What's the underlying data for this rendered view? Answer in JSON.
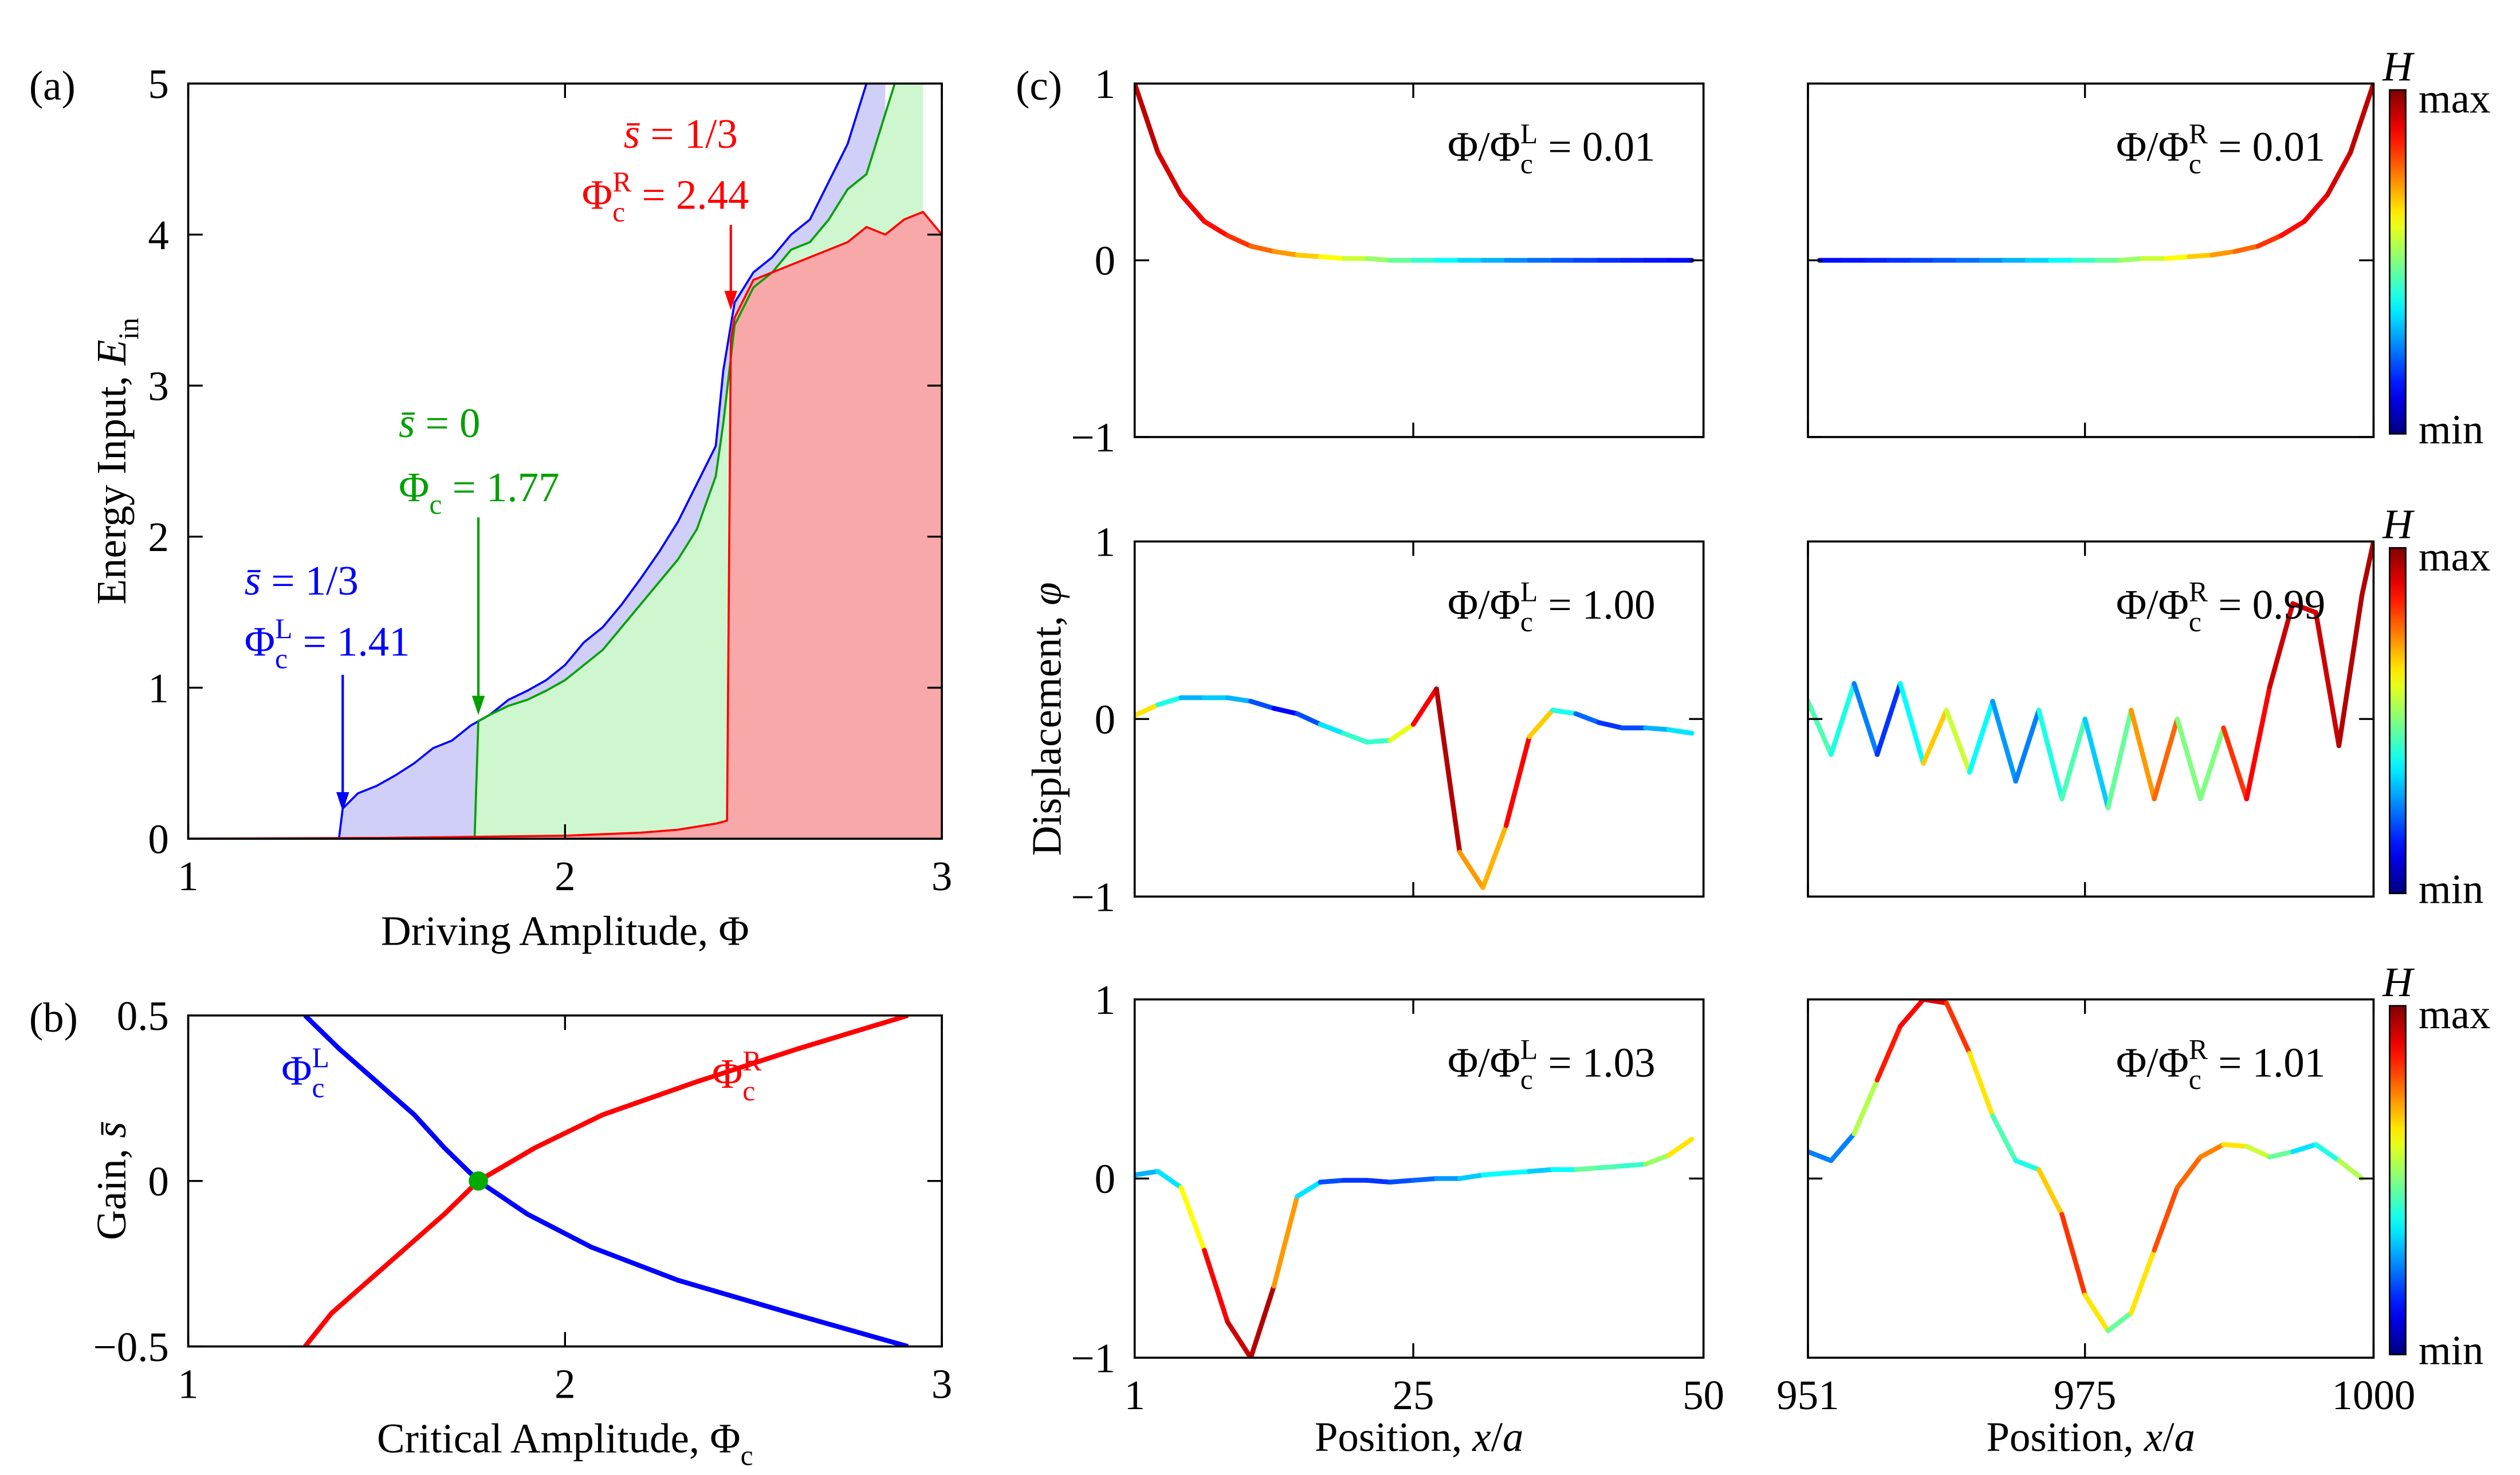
{
  "chart_data": [
    {
      "type": "area",
      "panel_label": "(a)",
      "xlabel": "Driving Amplitude, Φ",
      "ylabel": [
        "Energy Input, ",
        {
          "text": "E",
          "style": "italic"
        },
        {
          "text": "in",
          "style": "sub"
        }
      ],
      "xlim": [
        1,
        3
      ],
      "xticks": [
        1,
        2,
        3
      ],
      "ylim": [
        0,
        5
      ],
      "yticks": [
        0,
        1,
        2,
        3,
        4,
        5
      ],
      "series": [
        {
          "color": "#0000ff",
          "fill": "#cfcff7",
          "x": [
            1,
            1.4,
            1.41,
            1.45,
            1.5,
            1.55,
            1.6,
            1.65,
            1.7,
            1.75,
            1.8,
            1.85,
            1.9,
            1.95,
            2.0,
            2.05,
            2.1,
            2.15,
            2.2,
            2.25,
            2.3,
            2.35,
            2.4,
            2.42,
            2.45,
            2.5,
            2.55,
            2.6,
            2.65,
            2.7,
            2.75,
            2.8,
            2.85
          ],
          "values": [
            0,
            0,
            0.2,
            0.3,
            0.35,
            0.42,
            0.5,
            0.6,
            0.65,
            0.75,
            0.82,
            0.92,
            0.98,
            1.05,
            1.15,
            1.3,
            1.4,
            1.55,
            1.72,
            1.9,
            2.1,
            2.35,
            2.6,
            3.1,
            3.55,
            3.75,
            3.85,
            4.0,
            4.1,
            4.35,
            4.6,
            5.0,
            5.3
          ]
        },
        {
          "color": "#00a000",
          "fill": "#cff7cf",
          "x": [
            1,
            1.76,
            1.77,
            1.8,
            1.85,
            1.9,
            1.95,
            2.0,
            2.05,
            2.1,
            2.15,
            2.2,
            2.25,
            2.3,
            2.35,
            2.4,
            2.42,
            2.45,
            2.5,
            2.55,
            2.6,
            2.65,
            2.7,
            2.75,
            2.8,
            2.85,
            2.9,
            2.95
          ],
          "values": [
            0,
            0,
            0.78,
            0.82,
            0.88,
            0.92,
            0.98,
            1.05,
            1.15,
            1.25,
            1.4,
            1.55,
            1.7,
            1.85,
            2.05,
            2.4,
            2.75,
            3.4,
            3.65,
            3.75,
            3.9,
            3.95,
            4.1,
            4.3,
            4.4,
            4.8,
            5.2,
            5.4
          ]
        },
        {
          "color": "#ff0000",
          "fill": "#f8a8a8",
          "x": [
            1,
            1.5,
            2.0,
            2.2,
            2.3,
            2.4,
            2.43,
            2.44,
            2.45,
            2.5,
            2.55,
            2.6,
            2.65,
            2.7,
            2.75,
            2.8,
            2.85,
            2.9,
            2.95,
            3.0
          ],
          "values": [
            0,
            0.005,
            0.02,
            0.04,
            0.06,
            0.1,
            0.12,
            3.3,
            3.45,
            3.7,
            3.75,
            3.8,
            3.85,
            3.9,
            3.95,
            4.05,
            4.0,
            4.1,
            4.15,
            4.0
          ]
        }
      ],
      "annotations": [
        {
          "color": "#0000ff",
          "x": 1.41,
          "lines": [
            [
              {
                "text": "s̄",
                "style": "italic"
              },
              " = 1/3"
            ],
            [
              "Φ",
              {
                "text": "c",
                "style": "sub"
              },
              {
                "text": "L",
                "style": "sup"
              },
              " = 1.41"
            ]
          ]
        },
        {
          "color": "#00a000",
          "x": 1.77,
          "lines": [
            [
              {
                "text": "s̄",
                "style": "italic"
              },
              " = 0"
            ],
            [
              "Φ",
              {
                "text": "c",
                "style": "sub"
              },
              " = 1.77"
            ]
          ]
        },
        {
          "color": "#ff0000",
          "x": 2.44,
          "lines": [
            [
              {
                "text": "s̄",
                "style": "italic"
              },
              " = 1/3"
            ],
            [
              "Φ",
              {
                "text": "c",
                "style": "sub"
              },
              {
                "text": "R",
                "style": "sup"
              },
              " = 2.44"
            ]
          ]
        }
      ]
    },
    {
      "type": "line",
      "panel_label": "(b)",
      "xlabel": [
        "Critical Amplitude, Φ",
        {
          "text": "c",
          "style": "sub"
        }
      ],
      "ylabel": [
        "Gain, ",
        {
          "text": "s̄",
          "style": "italic"
        }
      ],
      "xlim": [
        1,
        3
      ],
      "xticks": [
        1,
        2,
        3
      ],
      "ylim": [
        -0.5,
        0.5
      ],
      "yticks": [
        {
          "value": -0.5,
          "label": "−0.5"
        },
        0,
        0.5
      ],
      "series": [
        {
          "color": "#0000ff",
          "x": [
            1.31,
            1.4,
            1.5,
            1.6,
            1.68,
            1.77,
            1.9,
            2.07,
            2.3,
            2.6,
            2.91
          ],
          "values": [
            0.5,
            0.4,
            0.3,
            0.2,
            0.1,
            0,
            -0.1,
            -0.2,
            -0.3,
            -0.4,
            -0.5
          ]
        },
        {
          "color": "#ff0000",
          "x": [
            1.31,
            1.38,
            1.48,
            1.58,
            1.68,
            1.77,
            1.92,
            2.1,
            2.35,
            2.62,
            2.91
          ],
          "values": [
            -0.5,
            -0.4,
            -0.3,
            -0.2,
            -0.1,
            0,
            0.1,
            0.2,
            0.3,
            0.4,
            0.5
          ]
        }
      ],
      "point": {
        "x": 1.77,
        "y": 0,
        "color": "#00aa00"
      },
      "annotations": [
        {
          "color": "#0000ff",
          "text": [
            "Φ",
            {
              "text": "c",
              "style": "sub"
            },
            {
              "text": "L",
              "style": "sup"
            }
          ]
        },
        {
          "color": "#ff0000",
          "text": [
            "Φ",
            {
              "text": "c",
              "style": "sub"
            },
            {
              "text": "R",
              "style": "sup"
            }
          ]
        }
      ]
    },
    {
      "type": "colorline",
      "panel_label": "(c)",
      "annotation": [
        "Φ/Φ",
        {
          "text": "c",
          "style": "sub"
        },
        {
          "text": "L",
          "style": "sup"
        },
        " = 0.01"
      ],
      "xlim": [
        1,
        50
      ],
      "xticks": [
        1,
        25,
        50
      ],
      "ylim": [
        -1,
        1
      ],
      "yticks": [
        {
          "value": -1,
          "label": "−1"
        },
        0,
        1
      ],
      "x": [
        1,
        3,
        5,
        7,
        9,
        11,
        13,
        15,
        17,
        19,
        21,
        23,
        25,
        27,
        29,
        31,
        33,
        35,
        37,
        39,
        41,
        43,
        45,
        47,
        49
      ],
      "values": [
        1,
        0.61,
        0.37,
        0.22,
        0.14,
        0.08,
        0.05,
        0.03,
        0.02,
        0.01,
        0.01,
        0,
        0,
        0,
        0,
        0,
        0,
        0,
        0,
        0,
        0,
        0,
        0,
        0,
        0
      ],
      "h": [
        0.95,
        0.93,
        0.9,
        0.88,
        0.85,
        0.8,
        0.75,
        0.7,
        0.65,
        0.6,
        0.55,
        0.5,
        0.45,
        0.4,
        0.35,
        0.32,
        0.28,
        0.25,
        0.22,
        0.2,
        0.18,
        0.16,
        0.15,
        0.14,
        0.13
      ]
    },
    {
      "type": "colorline",
      "annotation": [
        "Φ/Φ",
        {
          "text": "c",
          "style": "sub"
        },
        {
          "text": "R",
          "style": "sup"
        },
        " = 0.01"
      ],
      "colorbar": {
        "label": "H",
        "max": "max",
        "min": "min"
      },
      "xlim": [
        951,
        1000
      ],
      "xticks": [
        951,
        975,
        1000
      ],
      "ylim": [
        -1,
        1
      ],
      "yticks": [
        -1,
        0,
        1
      ],
      "x": [
        952,
        954,
        956,
        958,
        960,
        962,
        964,
        966,
        968,
        970,
        972,
        974,
        976,
        978,
        980,
        982,
        984,
        986,
        988,
        990,
        992,
        994,
        996,
        998,
        1000
      ],
      "values": [
        0,
        0,
        0,
        0,
        0,
        0,
        0,
        0,
        0,
        0,
        0,
        0,
        0,
        0,
        0.01,
        0.01,
        0.02,
        0.03,
        0.05,
        0.08,
        0.14,
        0.22,
        0.37,
        0.61,
        1
      ],
      "h": [
        0.13,
        0.14,
        0.15,
        0.16,
        0.18,
        0.2,
        0.22,
        0.25,
        0.28,
        0.32,
        0.35,
        0.4,
        0.45,
        0.5,
        0.55,
        0.6,
        0.65,
        0.7,
        0.75,
        0.8,
        0.85,
        0.88,
        0.9,
        0.93,
        0.95
      ]
    },
    {
      "type": "colorline",
      "ylabel": [
        "Displacement, ",
        {
          "text": "φ",
          "style": "italic"
        }
      ],
      "annotation": [
        "Φ/Φ",
        {
          "text": "c",
          "style": "sub"
        },
        {
          "text": "L",
          "style": "sup"
        },
        " = 1.00"
      ],
      "xlim": [
        1,
        50
      ],
      "xticks": [
        1,
        25,
        50
      ],
      "ylim": [
        -1,
        1
      ],
      "yticks": [
        {
          "value": -1,
          "label": "−1"
        },
        0,
        1
      ],
      "x": [
        1,
        3,
        5,
        7,
        9,
        11,
        13,
        15,
        17,
        19,
        21,
        23,
        25,
        27,
        29,
        31,
        33,
        35,
        37,
        39,
        41,
        43,
        45,
        47,
        49
      ],
      "values": [
        0.02,
        0.08,
        0.12,
        0.12,
        0.12,
        0.1,
        0.06,
        0.03,
        -0.03,
        -0.08,
        -0.13,
        -0.12,
        -0.03,
        0.17,
        -0.75,
        -0.95,
        -0.6,
        -0.1,
        0.05,
        0.03,
        -0.02,
        -0.05,
        -0.05,
        -0.06,
        -0.08
      ],
      "h": [
        0.8,
        0.5,
        0.3,
        0.3,
        0.35,
        0.25,
        0.15,
        0.1,
        0.3,
        0.4,
        0.45,
        0.4,
        0.8,
        0.95,
        0.95,
        0.5,
        0.9,
        0.85,
        0.5,
        0.3,
        0.15,
        0.2,
        0.2,
        0.4,
        0.3
      ]
    },
    {
      "type": "colorline",
      "annotation": [
        "Φ/Φ",
        {
          "text": "c",
          "style": "sub"
        },
        {
          "text": "R",
          "style": "sup"
        },
        " = 0.99"
      ],
      "colorbar": {
        "label": "H",
        "max": "max",
        "min": "min"
      },
      "xlim": [
        951,
        1000
      ],
      "xticks": [
        951,
        975,
        1000
      ],
      "ylim": [
        -1,
        1
      ],
      "yticks": [
        -1,
        0,
        1
      ],
      "x": [
        951,
        953,
        955,
        957,
        959,
        961,
        963,
        965,
        967,
        969,
        971,
        973,
        975,
        977,
        979,
        981,
        983,
        985,
        987,
        989,
        991,
        993,
        995,
        997,
        999,
        1000
      ],
      "values": [
        0.1,
        -0.2,
        0.2,
        -0.2,
        0.2,
        -0.25,
        0.05,
        -0.3,
        0.1,
        -0.35,
        0.05,
        -0.45,
        0.0,
        -0.5,
        0.05,
        -0.45,
        0.0,
        -0.45,
        -0.05,
        -0.45,
        0.18,
        0.65,
        0.6,
        -0.15,
        0.7,
        1.0
      ],
      "h": [
        0.4,
        0.5,
        0.3,
        0.2,
        0.15,
        0.6,
        0.75,
        0.4,
        0.35,
        0.2,
        0.3,
        0.5,
        0.4,
        0.25,
        0.7,
        0.75,
        0.8,
        0.2,
        0.8,
        0.85,
        0.9,
        0.95,
        0.9,
        0.95,
        0.95,
        0.95
      ]
    },
    {
      "type": "colorline",
      "xlabel": [
        "Position, ",
        {
          "text": "x",
          "style": "italic"
        },
        "/",
        {
          "text": "a",
          "style": "italic"
        }
      ],
      "annotation": [
        "Φ/Φ",
        {
          "text": "c",
          "style": "sub"
        },
        {
          "text": "L",
          "style": "sup"
        },
        " = 1.03"
      ],
      "xlim": [
        1,
        50
      ],
      "xticks": [
        1,
        25,
        50
      ],
      "ylim": [
        -1,
        1
      ],
      "yticks": [
        {
          "value": -1,
          "label": "−1"
        },
        0,
        1
      ],
      "x": [
        1,
        3,
        5,
        7,
        9,
        11,
        13,
        15,
        17,
        19,
        21,
        23,
        25,
        27,
        29,
        31,
        33,
        35,
        37,
        39,
        41,
        43,
        45,
        47,
        49
      ],
      "values": [
        0.02,
        0.04,
        -0.05,
        -0.4,
        -0.8,
        -1,
        -0.6,
        -0.1,
        -0.02,
        -0.01,
        -0.01,
        -0.02,
        -0.01,
        0,
        0,
        0.02,
        0.03,
        0.04,
        0.05,
        0.05,
        0.06,
        0.07,
        0.08,
        0.13,
        0.22
      ],
      "h": [
        0.3,
        0.3,
        0.4,
        0.85,
        0.9,
        0.95,
        0.95,
        0.5,
        0.2,
        0.2,
        0.15,
        0.2,
        0.2,
        0.25,
        0.3,
        0.35,
        0.4,
        0.35,
        0.3,
        0.45,
        0.5,
        0.4,
        0.45,
        0.6,
        0.7
      ]
    },
    {
      "type": "colorline",
      "xlabel": [
        "Position, ",
        {
          "text": "x",
          "style": "italic"
        },
        "/",
        {
          "text": "a",
          "style": "italic"
        }
      ],
      "annotation": [
        "Φ/Φ",
        {
          "text": "c",
          "style": "sub"
        },
        {
          "text": "R",
          "style": "sup"
        },
        " = 1.01"
      ],
      "colorbar": {
        "label": "H",
        "max": "max",
        "min": "min"
      },
      "xlim": [
        951,
        1000
      ],
      "xticks": [
        951,
        975,
        1000
      ],
      "ylim": [
        -1,
        1
      ],
      "yticks": [
        -1,
        0,
        1
      ],
      "x": [
        951,
        953,
        955,
        957,
        959,
        961,
        963,
        965,
        967,
        969,
        971,
        973,
        975,
        977,
        979,
        981,
        983,
        985,
        987,
        989,
        991,
        993,
        995,
        997,
        999
      ],
      "values": [
        0.15,
        0.1,
        0.25,
        0.55,
        0.85,
        1.0,
        0.98,
        0.7,
        0.35,
        0.1,
        0.05,
        -0.2,
        -0.65,
        -0.85,
        -0.75,
        -0.4,
        -0.05,
        0.12,
        0.19,
        0.18,
        0.12,
        0.15,
        0.19,
        0.1,
        0.0
      ],
      "h": [
        0.3,
        0.2,
        0.3,
        0.8,
        0.9,
        0.85,
        0.95,
        0.7,
        0.6,
        0.3,
        0.5,
        0.85,
        0.8,
        0.5,
        0.45,
        0.85,
        0.75,
        0.8,
        0.7,
        0.6,
        0.55,
        0.4,
        0.3,
        0.5,
        0.6
      ]
    }
  ]
}
